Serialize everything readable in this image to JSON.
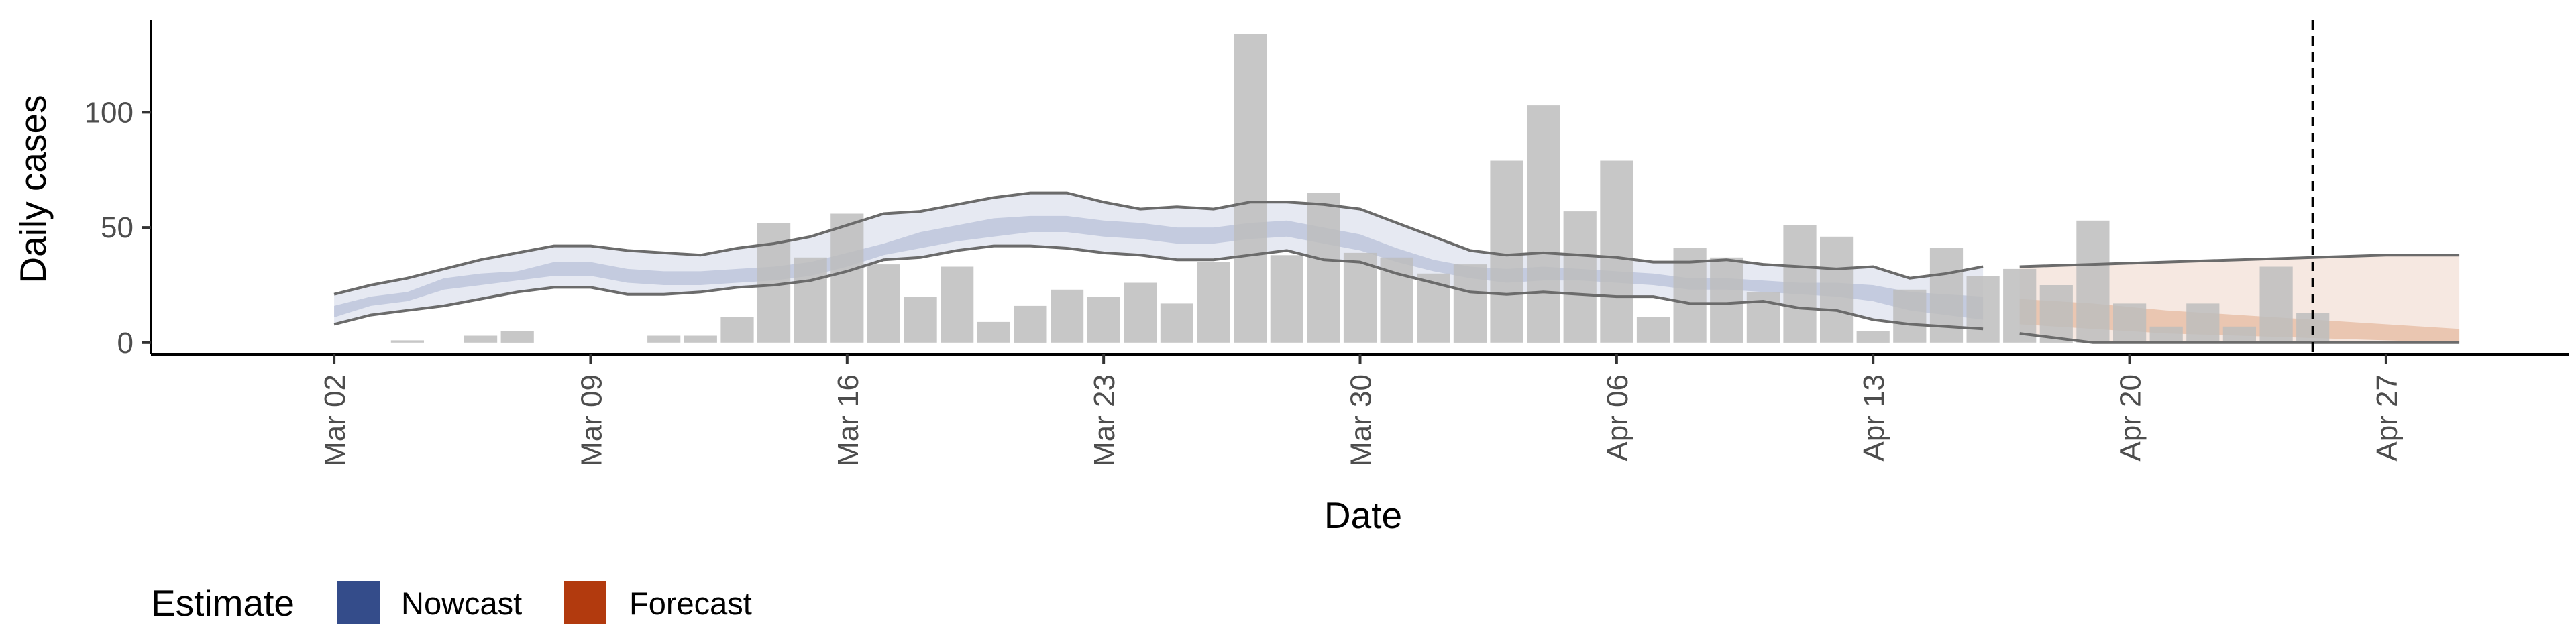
{
  "chart_data": {
    "type": "bar",
    "xlabel": "Date",
    "ylabel": "Daily cases",
    "x_range": [
      "2020-02-26",
      "2020-05-02"
    ],
    "ylim": [
      -5,
      140
    ],
    "yticks": [
      0,
      50,
      100
    ],
    "xticks": [
      {
        "date": "2020-03-02",
        "label": "Mar 02"
      },
      {
        "date": "2020-03-09",
        "label": "Mar 09"
      },
      {
        "date": "2020-03-16",
        "label": "Mar 16"
      },
      {
        "date": "2020-03-23",
        "label": "Mar 23"
      },
      {
        "date": "2020-03-30",
        "label": "Mar 30"
      },
      {
        "date": "2020-04-06",
        "label": "Apr 06"
      },
      {
        "date": "2020-04-13",
        "label": "Apr 13"
      },
      {
        "date": "2020-04-20",
        "label": "Apr 20"
      },
      {
        "date": "2020-04-27",
        "label": "Apr 27"
      }
    ],
    "grid": false,
    "cases": {
      "dates": [
        "2020-03-03",
        "2020-03-04",
        "2020-03-05",
        "2020-03-06",
        "2020-03-07",
        "2020-03-08",
        "2020-03-09",
        "2020-03-10",
        "2020-03-11",
        "2020-03-12",
        "2020-03-13",
        "2020-03-14",
        "2020-03-15",
        "2020-03-16",
        "2020-03-17",
        "2020-03-18",
        "2020-03-19",
        "2020-03-20",
        "2020-03-21",
        "2020-03-22",
        "2020-03-23",
        "2020-03-24",
        "2020-03-25",
        "2020-03-26",
        "2020-03-27",
        "2020-03-28",
        "2020-03-29",
        "2020-03-30",
        "2020-03-31",
        "2020-04-01",
        "2020-04-02",
        "2020-04-03",
        "2020-04-04",
        "2020-04-05",
        "2020-04-06",
        "2020-04-07",
        "2020-04-08",
        "2020-04-09",
        "2020-04-10",
        "2020-04-11",
        "2020-04-12",
        "2020-04-13",
        "2020-04-14",
        "2020-04-15",
        "2020-04-16",
        "2020-04-17",
        "2020-04-18",
        "2020-04-19",
        "2020-04-20",
        "2020-04-21",
        "2020-04-22",
        "2020-04-23",
        "2020-04-24",
        "2020-04-25"
      ],
      "values": [
        0,
        1,
        0,
        3,
        5,
        0,
        0,
        0,
        3,
        3,
        11,
        52,
        37,
        56,
        34,
        20,
        33,
        9,
        16,
        23,
        20,
        26,
        17,
        35,
        134,
        38,
        65,
        39,
        37,
        30,
        34,
        79,
        103,
        57,
        79,
        11,
        41,
        37,
        22,
        51,
        46,
        5,
        23,
        41,
        29,
        32,
        25,
        53,
        17,
        7,
        17,
        7,
        33,
        13
      ]
    },
    "series": [
      {
        "name": "Nowcast",
        "dates": [
          "2020-03-02",
          "2020-03-03",
          "2020-03-04",
          "2020-03-05",
          "2020-03-06",
          "2020-03-07",
          "2020-03-08",
          "2020-03-09",
          "2020-03-10",
          "2020-03-11",
          "2020-03-12",
          "2020-03-13",
          "2020-03-14",
          "2020-03-15",
          "2020-03-16",
          "2020-03-17",
          "2020-03-18",
          "2020-03-19",
          "2020-03-20",
          "2020-03-21",
          "2020-03-22",
          "2020-03-23",
          "2020-03-24",
          "2020-03-25",
          "2020-03-26",
          "2020-03-27",
          "2020-03-28",
          "2020-03-29",
          "2020-03-30",
          "2020-03-31",
          "2020-04-01",
          "2020-04-02",
          "2020-04-03",
          "2020-04-04",
          "2020-04-05",
          "2020-04-06",
          "2020-04-07",
          "2020-04-08",
          "2020-04-09",
          "2020-04-10",
          "2020-04-11",
          "2020-04-12",
          "2020-04-13",
          "2020-04-14",
          "2020-04-15",
          "2020-04-16"
        ],
        "outer_low": [
          8,
          12,
          14,
          16,
          19,
          22,
          24,
          24,
          21,
          21,
          22,
          24,
          25,
          27,
          31,
          36,
          37,
          40,
          42,
          42,
          41,
          39,
          38,
          36,
          36,
          38,
          40,
          36,
          35,
          30,
          26,
          22,
          21,
          22,
          21,
          20,
          20,
          17,
          17,
          18,
          15,
          14,
          10,
          8,
          7,
          6
        ],
        "outer_high": [
          21,
          25,
          28,
          32,
          36,
          39,
          42,
          42,
          40,
          39,
          38,
          41,
          43,
          46,
          51,
          56,
          57,
          60,
          63,
          65,
          65,
          61,
          58,
          59,
          58,
          61,
          61,
          60,
          58,
          52,
          46,
          40,
          38,
          39,
          38,
          37,
          35,
          35,
          36,
          34,
          33,
          32,
          33,
          28,
          30,
          33
        ],
        "inner_low": [
          11,
          16,
          18,
          23,
          25,
          27,
          29,
          29,
          26,
          25,
          25,
          26,
          27,
          29,
          33,
          38,
          41,
          44,
          46,
          48,
          48,
          46,
          45,
          43,
          43,
          45,
          46,
          43,
          40,
          35,
          31,
          28,
          26,
          27,
          27,
          26,
          25,
          23,
          23,
          22,
          21,
          20,
          18,
          14,
          12,
          10
        ],
        "inner_high": [
          16,
          20,
          22,
          28,
          30,
          31,
          35,
          35,
          32,
          31,
          31,
          32,
          33,
          35,
          39,
          43,
          48,
          51,
          54,
          55,
          55,
          53,
          52,
          50,
          50,
          52,
          53,
          50,
          47,
          41,
          36,
          33,
          32,
          33,
          32,
          31,
          30,
          28,
          28,
          27,
          26,
          26,
          25,
          22,
          21,
          20
        ]
      },
      {
        "name": "Forecast",
        "dates": [
          "2020-04-17",
          "2020-04-19",
          "2020-04-21",
          "2020-04-23",
          "2020-04-25",
          "2020-04-27",
          "2020-04-29"
        ],
        "outer_low": [
          4,
          0,
          0,
          0,
          0,
          0,
          0
        ],
        "outer_high": [
          33,
          34,
          35,
          36,
          37,
          38,
          38
        ],
        "inner_low": [
          8,
          6,
          4,
          3,
          2,
          1,
          0
        ],
        "inner_high": [
          19,
          17,
          14,
          12,
          10,
          8,
          6
        ]
      }
    ],
    "vline": "2020-04-25",
    "legend": {
      "title": "Estimate",
      "position": "bottom-left",
      "items": [
        {
          "label": "Nowcast",
          "color": "#344c8a"
        },
        {
          "label": "Forecast",
          "color": "#b23a0e"
        }
      ]
    },
    "colors": {
      "bars": "#bdbdbd",
      "nowcast_outer": "#e6e9f2",
      "nowcast_inner": "#c4cbdf",
      "forecast_outer": "#f4e4dc",
      "forecast_inner": "#e8c0a8",
      "interval_line": "#6b6b6b"
    }
  }
}
